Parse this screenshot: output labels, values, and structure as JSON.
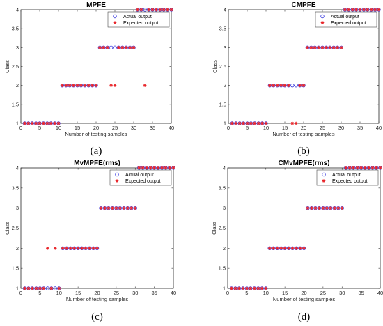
{
  "chart_data": [
    {
      "type": "scatter",
      "title": "MPFE",
      "caption": "(a)",
      "xlabel": "Number of testing samples",
      "ylabel": "Class",
      "xlim": [
        0,
        40
      ],
      "ylim": [
        1,
        4
      ],
      "xticks": [
        "0",
        "5",
        "10",
        "15",
        "20",
        "25",
        "30",
        "35",
        "40"
      ],
      "yticks": [
        "1",
        "1.5",
        "2",
        "2.5",
        "3",
        "3.5",
        "4"
      ],
      "legend_position": "top-right",
      "series": [
        {
          "name": "Actual output",
          "marker": "circle",
          "color": "#3333dd",
          "x": [
            1,
            2,
            3,
            4,
            5,
            6,
            7,
            8,
            9,
            10,
            11,
            12,
            13,
            14,
            15,
            16,
            17,
            18,
            19,
            20,
            21,
            22,
            23,
            24,
            25,
            26,
            27,
            28,
            29,
            30,
            31,
            32,
            33,
            34,
            35,
            36,
            37,
            38,
            39,
            40
          ],
          "y": [
            1,
            1,
            1,
            1,
            1,
            1,
            1,
            1,
            1,
            1,
            2,
            2,
            2,
            2,
            2,
            2,
            2,
            2,
            2,
            2,
            3,
            3,
            3,
            3,
            3,
            3,
            3,
            3,
            3,
            3,
            4,
            4,
            4,
            4,
            4,
            4,
            4,
            4,
            4,
            4
          ]
        },
        {
          "name": "Expected output",
          "marker": "star",
          "color": "#e8262b",
          "x": [
            1,
            2,
            3,
            4,
            5,
            6,
            7,
            8,
            9,
            10,
            11,
            12,
            13,
            14,
            15,
            16,
            17,
            18,
            19,
            20,
            21,
            22,
            23,
            24,
            25,
            26,
            27,
            28,
            29,
            30,
            31,
            32,
            33,
            34,
            35,
            36,
            37,
            38,
            39,
            40
          ],
          "y": [
            1,
            1,
            1,
            1,
            1,
            1,
            1,
            1,
            1,
            1,
            2,
            2,
            2,
            2,
            2,
            2,
            2,
            2,
            2,
            2,
            3,
            3,
            3,
            2,
            2,
            3,
            3,
            3,
            3,
            3,
            4,
            4,
            2,
            4,
            4,
            4,
            4,
            4,
            4,
            4
          ]
        }
      ]
    },
    {
      "type": "scatter",
      "title": "CMPFE",
      "caption": "(b)",
      "xlabel": "Number of testing samples",
      "ylabel": "Class",
      "xlim": [
        0,
        40
      ],
      "ylim": [
        1,
        4
      ],
      "xticks": [
        "0",
        "5",
        "10",
        "15",
        "20",
        "25",
        "30",
        "35",
        "40"
      ],
      "yticks": [
        "1",
        "1.5",
        "2",
        "2.5",
        "3",
        "3.5",
        "4"
      ],
      "legend_position": "top-right",
      "series": [
        {
          "name": "Actual output",
          "marker": "circle",
          "color": "#3333dd",
          "x": [
            1,
            2,
            3,
            4,
            5,
            6,
            7,
            8,
            9,
            10,
            11,
            12,
            13,
            14,
            15,
            16,
            17,
            18,
            19,
            20,
            21,
            22,
            23,
            24,
            25,
            26,
            27,
            28,
            29,
            30,
            31,
            32,
            33,
            34,
            35,
            36,
            37,
            38,
            39,
            40
          ],
          "y": [
            1,
            1,
            1,
            1,
            1,
            1,
            1,
            1,
            1,
            1,
            2,
            2,
            2,
            2,
            2,
            2,
            2,
            2,
            2,
            2,
            3,
            3,
            3,
            3,
            3,
            3,
            3,
            3,
            3,
            3,
            4,
            4,
            4,
            4,
            4,
            4,
            4,
            4,
            4,
            4
          ]
        },
        {
          "name": "Expected output",
          "marker": "star",
          "color": "#e8262b",
          "x": [
            1,
            2,
            3,
            4,
            5,
            6,
            7,
            8,
            9,
            10,
            11,
            12,
            13,
            14,
            15,
            16,
            17,
            18,
            19,
            20,
            21,
            22,
            23,
            24,
            25,
            26,
            27,
            28,
            29,
            30,
            31,
            32,
            33,
            34,
            35,
            36,
            37,
            38,
            39,
            40
          ],
          "y": [
            1,
            1,
            1,
            1,
            1,
            1,
            1,
            1,
            1,
            1,
            2,
            2,
            2,
            2,
            2,
            2,
            1,
            1,
            2,
            2,
            3,
            3,
            3,
            3,
            3,
            3,
            3,
            3,
            3,
            3,
            4,
            4,
            4,
            4,
            4,
            4,
            4,
            4,
            4,
            4
          ]
        }
      ]
    },
    {
      "type": "scatter",
      "title": "MvMPFE(rms)",
      "caption": "(c)",
      "xlabel": "Number of testing samples",
      "ylabel": "Class",
      "xlim": [
        0,
        40
      ],
      "ylim": [
        1,
        4
      ],
      "xticks": [
        "0",
        "5",
        "10",
        "15",
        "20",
        "25",
        "30",
        "35",
        "40"
      ],
      "yticks": [
        "1",
        "1.5",
        "2",
        "2.5",
        "3",
        "3.5",
        "4"
      ],
      "legend_position": "top-right",
      "series": [
        {
          "name": "Actual output",
          "marker": "circle",
          "color": "#3333dd",
          "x": [
            1,
            2,
            3,
            4,
            5,
            6,
            7,
            8,
            9,
            10,
            11,
            12,
            13,
            14,
            15,
            16,
            17,
            18,
            19,
            20,
            21,
            22,
            23,
            24,
            25,
            26,
            27,
            28,
            29,
            30,
            31,
            32,
            33,
            34,
            35,
            36,
            37,
            38,
            39,
            40
          ],
          "y": [
            1,
            1,
            1,
            1,
            1,
            1,
            1,
            1,
            1,
            1,
            2,
            2,
            2,
            2,
            2,
            2,
            2,
            2,
            2,
            2,
            3,
            3,
            3,
            3,
            3,
            3,
            3,
            3,
            3,
            3,
            4,
            4,
            4,
            4,
            4,
            4,
            4,
            4,
            4,
            4
          ]
        },
        {
          "name": "Expected output",
          "marker": "star",
          "color": "#e8262b",
          "x": [
            1,
            2,
            3,
            4,
            5,
            6,
            7,
            8,
            9,
            10,
            11,
            12,
            13,
            14,
            15,
            16,
            17,
            18,
            19,
            20,
            21,
            22,
            23,
            24,
            25,
            26,
            27,
            28,
            29,
            30,
            31,
            32,
            33,
            34,
            35,
            36,
            37,
            38,
            39,
            40
          ],
          "y": [
            1,
            1,
            1,
            1,
            1,
            1,
            2,
            1,
            2,
            1,
            2,
            2,
            2,
            2,
            2,
            2,
            2,
            2,
            2,
            2,
            3,
            3,
            3,
            3,
            3,
            3,
            3,
            3,
            3,
            3,
            4,
            4,
            4,
            4,
            4,
            4,
            4,
            4,
            4,
            4
          ]
        }
      ]
    },
    {
      "type": "scatter",
      "title": "CMvMPFE(rms)",
      "caption": "(d)",
      "xlabel": "Number of testing samples",
      "ylabel": "Class",
      "xlim": [
        0,
        40
      ],
      "ylim": [
        1,
        4
      ],
      "xticks": [
        "0",
        "5",
        "10",
        "15",
        "20",
        "25",
        "30",
        "35",
        "40"
      ],
      "yticks": [
        "1",
        "1.5",
        "2",
        "2.5",
        "3",
        "3.5",
        "4"
      ],
      "legend_position": "top-right",
      "series": [
        {
          "name": "Actual output",
          "marker": "circle",
          "color": "#3333dd",
          "x": [
            1,
            2,
            3,
            4,
            5,
            6,
            7,
            8,
            9,
            10,
            11,
            12,
            13,
            14,
            15,
            16,
            17,
            18,
            19,
            20,
            21,
            22,
            23,
            24,
            25,
            26,
            27,
            28,
            29,
            30,
            31,
            32,
            33,
            34,
            35,
            36,
            37,
            38,
            39,
            40
          ],
          "y": [
            1,
            1,
            1,
            1,
            1,
            1,
            1,
            1,
            1,
            1,
            2,
            2,
            2,
            2,
            2,
            2,
            2,
            2,
            2,
            2,
            3,
            3,
            3,
            3,
            3,
            3,
            3,
            3,
            3,
            3,
            4,
            4,
            4,
            4,
            4,
            4,
            4,
            4,
            4,
            4
          ]
        },
        {
          "name": "Expected output",
          "marker": "star",
          "color": "#e8262b",
          "x": [
            1,
            2,
            3,
            4,
            5,
            6,
            7,
            8,
            9,
            10,
            11,
            12,
            13,
            14,
            15,
            16,
            17,
            18,
            19,
            20,
            21,
            22,
            23,
            24,
            25,
            26,
            27,
            28,
            29,
            30,
            31,
            32,
            33,
            34,
            35,
            36,
            37,
            38,
            39,
            40
          ],
          "y": [
            1,
            1,
            1,
            1,
            1,
            1,
            1,
            1,
            1,
            1,
            2,
            2,
            2,
            2,
            2,
            2,
            2,
            2,
            2,
            2,
            3,
            3,
            3,
            3,
            3,
            3,
            3,
            3,
            3,
            3,
            4,
            4,
            4,
            4,
            4,
            4,
            4,
            4,
            4,
            4
          ]
        }
      ]
    }
  ]
}
